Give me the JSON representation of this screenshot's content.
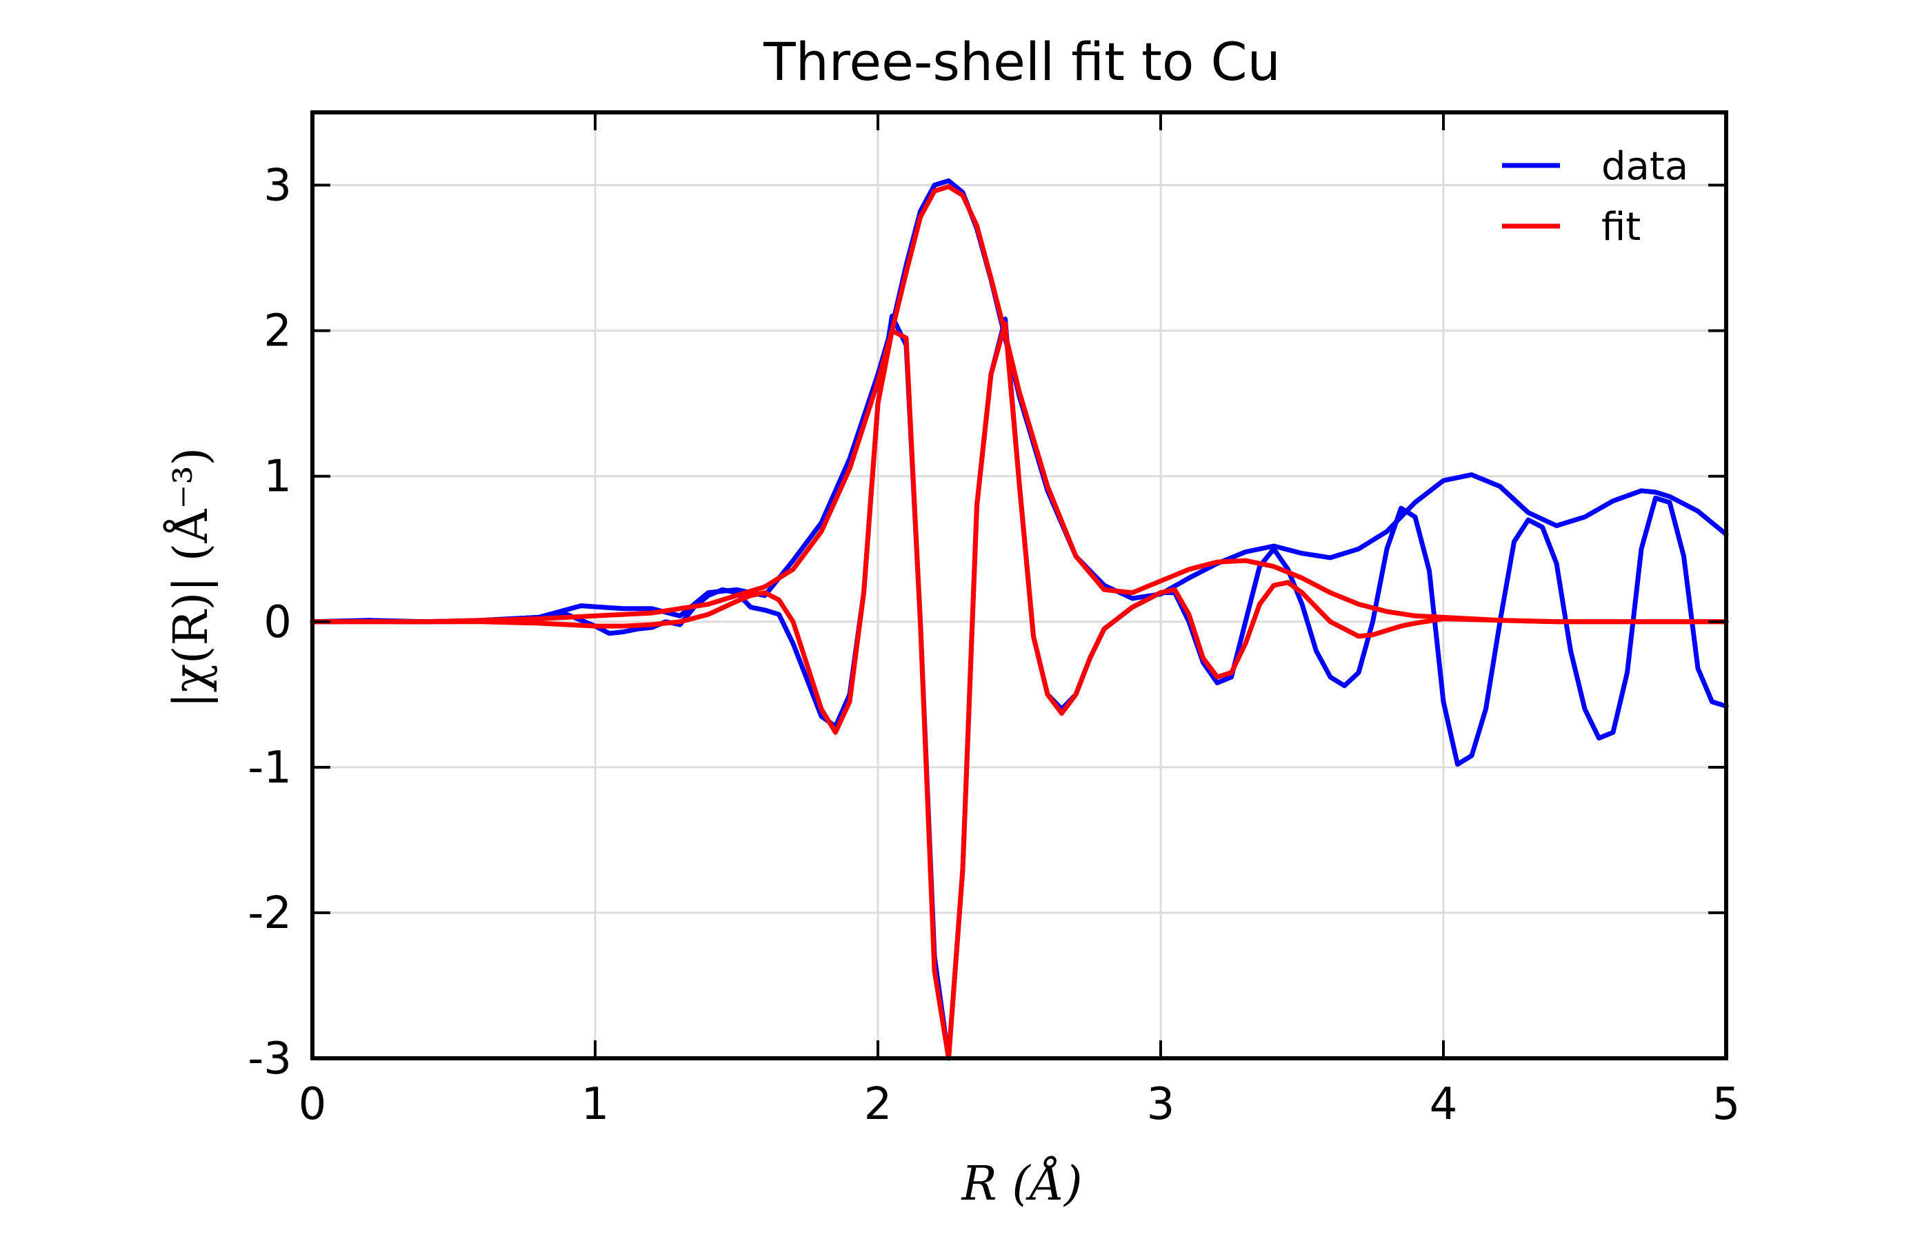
{
  "chart_data": {
    "type": "line",
    "title": "Three-shell fit to Cu",
    "xlabel": "R (Å)",
    "ylabel": "|χ(R)| (Å⁻³)",
    "xlim": [
      0,
      5
    ],
    "ylim": [
      -3,
      3.5
    ],
    "xticks": [
      0,
      1,
      2,
      3,
      4,
      5
    ],
    "xtick_labels": [
      "0",
      "1",
      "2",
      "3",
      "4",
      "5"
    ],
    "yticks": [
      -3,
      -2,
      -1,
      0,
      1,
      2,
      3
    ],
    "ytick_labels": [
      "-3",
      "-2",
      "-1",
      "0",
      "1",
      "2",
      "3"
    ],
    "grid": true,
    "legend_position": "top-right",
    "colors": {
      "data": "#0000ff",
      "fit": "#ff0000"
    },
    "series": [
      {
        "name": "data",
        "kind": "magnitude",
        "x": [
          0,
          0.2,
          0.4,
          0.6,
          0.8,
          0.95,
          1.1,
          1.2,
          1.3,
          1.4,
          1.5,
          1.6,
          1.7,
          1.8,
          1.9,
          2.0,
          2.05,
          2.1,
          2.15,
          2.2,
          2.25,
          2.3,
          2.35,
          2.4,
          2.45,
          2.5,
          2.6,
          2.7,
          2.8,
          2.9,
          3.0,
          3.1,
          3.2,
          3.3,
          3.4,
          3.5,
          3.6,
          3.7,
          3.8,
          3.9,
          4.0,
          4.1,
          4.2,
          4.3,
          4.4,
          4.5,
          4.6,
          4.7,
          4.75,
          4.8,
          4.9,
          5.0
        ],
        "y": [
          0.0,
          0.01,
          0.0,
          0.01,
          0.03,
          0.11,
          0.09,
          0.09,
          0.04,
          0.2,
          0.22,
          0.18,
          0.42,
          0.68,
          1.12,
          1.7,
          2.03,
          2.45,
          2.82,
          3.0,
          3.03,
          2.95,
          2.7,
          2.35,
          1.95,
          1.55,
          0.9,
          0.45,
          0.25,
          0.16,
          0.19,
          0.3,
          0.4,
          0.48,
          0.52,
          0.47,
          0.44,
          0.5,
          0.62,
          0.82,
          0.97,
          1.01,
          0.93,
          0.75,
          0.66,
          0.72,
          0.83,
          0.9,
          0.89,
          0.86,
          0.76,
          0.6
        ]
      },
      {
        "name": "data",
        "kind": "real part",
        "x": [
          0,
          0.1,
          0.2,
          0.3,
          0.4,
          0.5,
          0.6,
          0.7,
          0.8,
          0.9,
          1.0,
          1.05,
          1.1,
          1.15,
          1.2,
          1.25,
          1.3,
          1.35,
          1.4,
          1.45,
          1.5,
          1.55,
          1.6,
          1.65,
          1.7,
          1.75,
          1.8,
          1.85,
          1.9,
          1.95,
          2.0,
          2.05,
          2.1,
          2.15,
          2.2,
          2.25,
          2.3,
          2.35,
          2.4,
          2.45,
          2.5,
          2.55,
          2.6,
          2.65,
          2.7,
          2.75,
          2.8,
          2.9,
          3.0,
          3.05,
          3.1,
          3.15,
          3.2,
          3.25,
          3.3,
          3.35,
          3.4,
          3.45,
          3.5,
          3.55,
          3.6,
          3.65,
          3.7,
          3.75,
          3.8,
          3.85,
          3.9,
          3.95,
          4.0,
          4.05,
          4.1,
          4.15,
          4.2,
          4.25,
          4.3,
          4.35,
          4.4,
          4.45,
          4.5,
          4.55,
          4.6,
          4.65,
          4.7,
          4.75,
          4.8,
          4.85,
          4.9,
          4.95,
          5.0
        ],
        "y": [
          0.0,
          0.0,
          0.01,
          0.0,
          0.0,
          0.0,
          0.01,
          0.02,
          0.03,
          0.05,
          -0.03,
          -0.08,
          -0.07,
          -0.05,
          -0.04,
          0.0,
          -0.02,
          0.1,
          0.18,
          0.22,
          0.2,
          0.1,
          0.08,
          0.05,
          -0.15,
          -0.4,
          -0.65,
          -0.72,
          -0.5,
          0.2,
          1.5,
          2.1,
          1.9,
          0.0,
          -2.3,
          -3.0,
          -1.7,
          0.8,
          1.7,
          2.08,
          0.95,
          -0.1,
          -0.5,
          -0.6,
          -0.5,
          -0.25,
          -0.05,
          0.1,
          0.2,
          0.2,
          0.0,
          -0.28,
          -0.42,
          -0.38,
          0.0,
          0.38,
          0.5,
          0.36,
          0.12,
          -0.2,
          -0.38,
          -0.44,
          -0.35,
          0.0,
          0.5,
          0.78,
          0.72,
          0.35,
          -0.55,
          -0.98,
          -0.92,
          -0.6,
          0.0,
          0.55,
          0.7,
          0.65,
          0.4,
          -0.2,
          -0.6,
          -0.8,
          -0.76,
          -0.35,
          0.5,
          0.85,
          0.82,
          0.45,
          -0.32,
          -0.55,
          -0.58
        ]
      },
      {
        "name": "fit",
        "kind": "magnitude",
        "x": [
          0,
          0.2,
          0.4,
          0.6,
          0.8,
          1.0,
          1.2,
          1.4,
          1.6,
          1.7,
          1.8,
          1.9,
          2.0,
          2.05,
          2.1,
          2.15,
          2.2,
          2.25,
          2.3,
          2.35,
          2.4,
          2.45,
          2.5,
          2.6,
          2.7,
          2.8,
          2.9,
          3.0,
          3.1,
          3.2,
          3.3,
          3.4,
          3.5,
          3.6,
          3.7,
          3.8,
          3.9,
          4.0,
          4.2,
          4.4,
          4.6,
          4.8,
          5.0
        ],
        "y": [
          0.0,
          0.0,
          0.0,
          0.01,
          0.02,
          0.04,
          0.06,
          0.12,
          0.24,
          0.36,
          0.62,
          1.05,
          1.65,
          2.0,
          2.4,
          2.78,
          2.96,
          2.99,
          2.93,
          2.72,
          2.36,
          1.98,
          1.58,
          0.93,
          0.45,
          0.22,
          0.2,
          0.28,
          0.36,
          0.41,
          0.42,
          0.38,
          0.3,
          0.2,
          0.12,
          0.07,
          0.04,
          0.03,
          0.01,
          0.0,
          0.0,
          0.0,
          0.0
        ]
      },
      {
        "name": "fit",
        "kind": "real part",
        "x": [
          0,
          0.2,
          0.4,
          0.6,
          0.8,
          0.9,
          1.0,
          1.1,
          1.2,
          1.3,
          1.4,
          1.5,
          1.55,
          1.6,
          1.65,
          1.7,
          1.75,
          1.8,
          1.85,
          1.9,
          1.95,
          2.0,
          2.05,
          2.1,
          2.15,
          2.2,
          2.25,
          2.3,
          2.35,
          2.4,
          2.45,
          2.5,
          2.55,
          2.6,
          2.65,
          2.7,
          2.75,
          2.8,
          2.9,
          3.0,
          3.05,
          3.1,
          3.15,
          3.2,
          3.25,
          3.3,
          3.35,
          3.4,
          3.45,
          3.5,
          3.55,
          3.6,
          3.65,
          3.7,
          3.75,
          3.8,
          3.85,
          3.9,
          4.0,
          4.2,
          4.4,
          4.6,
          4.8,
          5.0
        ],
        "y": [
          0.0,
          0.0,
          0.0,
          0.0,
          -0.01,
          -0.02,
          -0.03,
          -0.03,
          -0.02,
          0.0,
          0.05,
          0.14,
          0.18,
          0.2,
          0.15,
          0.0,
          -0.3,
          -0.6,
          -0.76,
          -0.55,
          0.2,
          1.5,
          2.0,
          1.95,
          0.0,
          -2.4,
          -3.0,
          -1.7,
          0.8,
          1.7,
          2.05,
          0.95,
          -0.1,
          -0.5,
          -0.63,
          -0.5,
          -0.25,
          -0.05,
          0.1,
          0.2,
          0.22,
          0.05,
          -0.25,
          -0.38,
          -0.35,
          -0.15,
          0.12,
          0.25,
          0.27,
          0.2,
          0.1,
          0.0,
          -0.05,
          -0.1,
          -0.09,
          -0.06,
          -0.03,
          -0.01,
          0.02,
          0.01,
          0.0,
          0.0,
          0.0,
          0.0
        ]
      }
    ]
  }
}
